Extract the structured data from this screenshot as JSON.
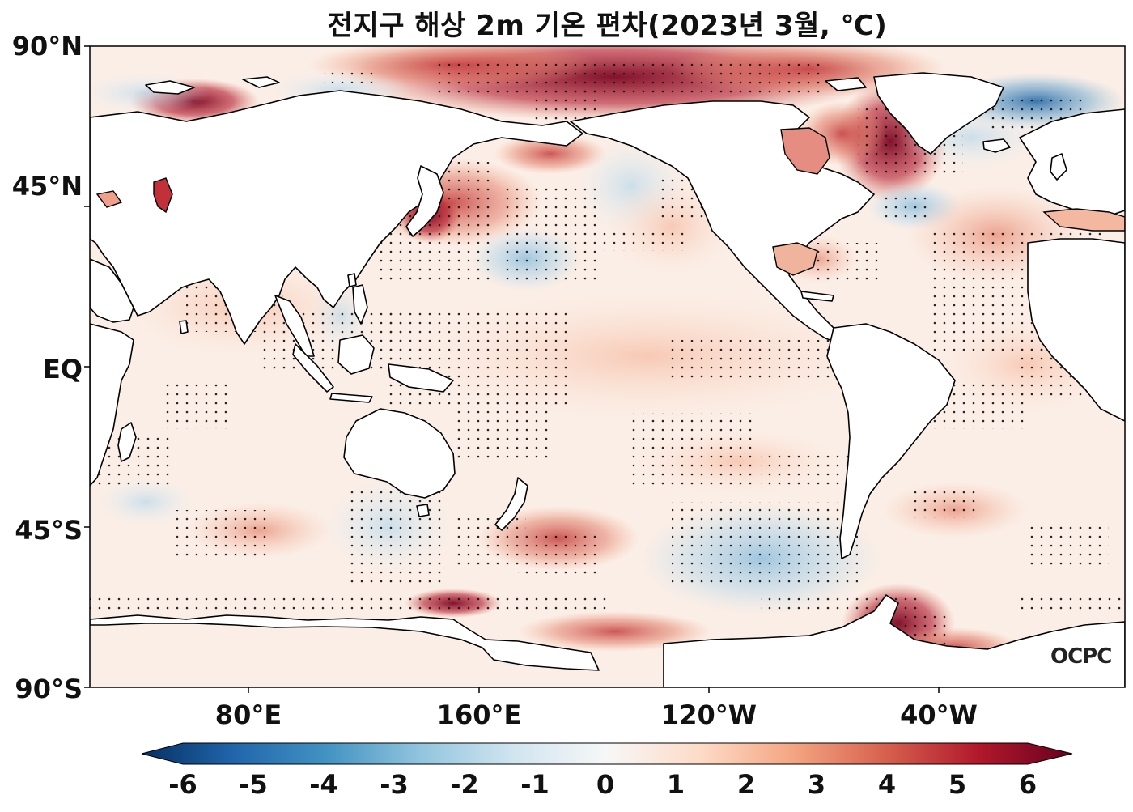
{
  "title": "전지구 해상 2m 기온 편차(2023년 3월, ℃)",
  "lat_labels": [
    "90°N",
    "45°N",
    "EQ",
    "45°S",
    "90°S"
  ],
  "lon_labels": [
    "80°E",
    "160°E",
    "120°W",
    "40°W"
  ],
  "colorbar": {
    "ticks": [
      "-6",
      "-5",
      "-4",
      "-3",
      "-2",
      "-1",
      "0",
      "1",
      "2",
      "3",
      "4",
      "5",
      "6"
    ],
    "colors": [
      "#053061",
      "#2166ac",
      "#4393c3",
      "#92c5de",
      "#d1e5f0",
      "#f7f7f7",
      "#fddbc7",
      "#f4a582",
      "#d6604d",
      "#b2182b",
      "#67001f"
    ]
  },
  "watermark": "OCPC",
  "map_data": {
    "projection": "PlateCarree, central longitude 180",
    "lon_range": [
      20,
      380
    ],
    "lat_range": [
      -90,
      90
    ],
    "value_range": [
      -6,
      6
    ],
    "stippling": "statistically significant regions"
  }
}
